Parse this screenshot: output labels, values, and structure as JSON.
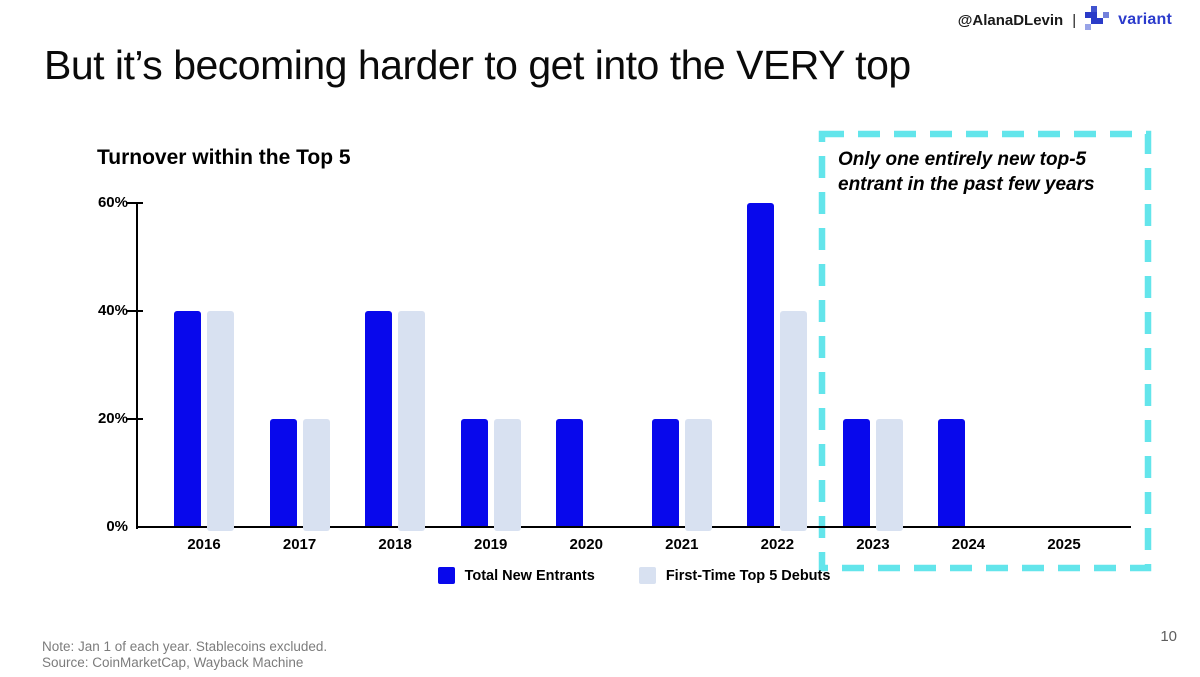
{
  "header": {
    "handle": "@AlanaDLevin",
    "separator": "|",
    "brand": "variant"
  },
  "title": "But it’s becoming harder to get into the VERY top",
  "chart_data": {
    "type": "bar",
    "title": "Turnover within the Top 5",
    "categories": [
      "2016",
      "2017",
      "2018",
      "2019",
      "2020",
      "2021",
      "2022",
      "2023",
      "2024",
      "2025"
    ],
    "series": [
      {
        "name": "Total New Entrants",
        "color": "#0808EC",
        "values": [
          40,
          20,
          40,
          20,
          20,
          20,
          60,
          20,
          20,
          null
        ]
      },
      {
        "name": "First-Time Top 5 Debuts",
        "color": "#D8E1F1",
        "values": [
          40,
          20,
          40,
          20,
          null,
          20,
          40,
          20,
          null,
          null
        ]
      }
    ],
    "yticks": [
      0,
      20,
      40,
      60
    ],
    "ytick_labels": [
      "0%",
      "20%",
      "40%",
      "60%"
    ],
    "ylim": [
      0,
      60
    ],
    "grid": false,
    "legend_position": "bottom"
  },
  "annotation": {
    "lines": [
      "Only one entirely new top-5",
      "entrant in the past few years"
    ],
    "box_color": "#63E5EB"
  },
  "footer": {
    "note": "Note: Jan 1 of each year. Stablecoins excluded.",
    "source": "Source: CoinMarketCap, Wayback Machine",
    "page_number": "10"
  },
  "colors": {
    "bar_dark": "#0808EC",
    "bar_light": "#D8E1F1",
    "highlight_cyan": "#63E5EB",
    "brand_blue": "#2B3BCC",
    "footer_gray": "#7c7c7c"
  }
}
